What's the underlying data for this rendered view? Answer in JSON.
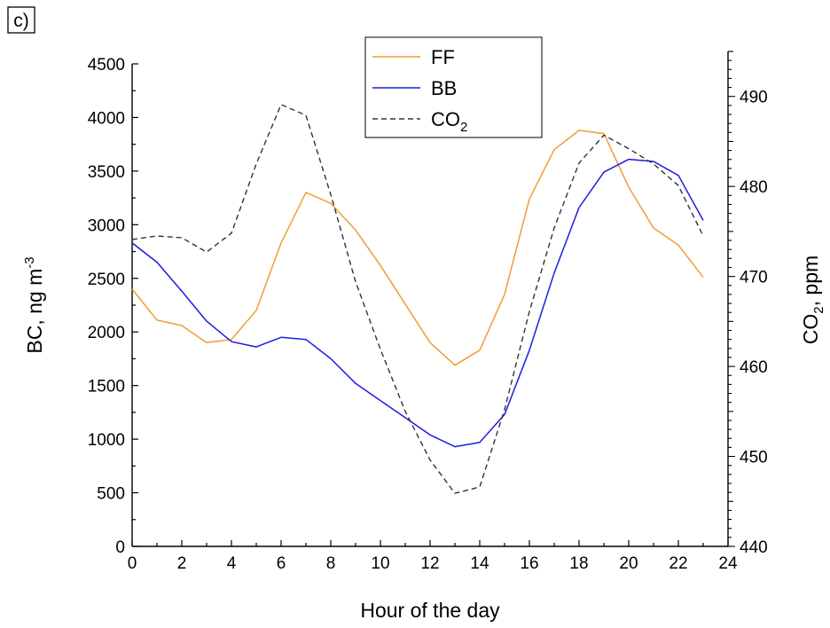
{
  "chart_data": {
    "type": "line",
    "panel_label": "c)",
    "x": [
      0,
      1,
      2,
      3,
      4,
      5,
      6,
      7,
      8,
      9,
      10,
      11,
      12,
      13,
      14,
      15,
      16,
      17,
      18,
      19,
      20,
      21,
      22,
      23
    ],
    "xlabel": "Hour of the day",
    "xlim": [
      0,
      24
    ],
    "x_ticks": [
      "0",
      "2",
      "4",
      "6",
      "8",
      "10",
      "12",
      "14",
      "16",
      "18",
      "20",
      "22",
      "24"
    ],
    "ylabel_left": {
      "main": "BC, ng m",
      "sup": "-3"
    },
    "ylim_left": [
      0,
      4500
    ],
    "y_ticks_left": [
      "0",
      "500",
      "1000",
      "1500",
      "2000",
      "2500",
      "3000",
      "3500",
      "4000",
      "4500"
    ],
    "ylabel_right": {
      "main": "CO",
      "sub": "2",
      "rest": ", ppm"
    },
    "ylim_right": [
      440,
      495
    ],
    "y_ticks_right": [
      "440",
      "450",
      "460",
      "470",
      "480",
      "490"
    ],
    "series": [
      {
        "name": "FF",
        "axis": "left",
        "color": "#F39C35",
        "style": "solid",
        "values": [
          2400,
          2110,
          2060,
          1900,
          1930,
          2200,
          2830,
          3300,
          3200,
          2950,
          2620,
          2260,
          1900,
          1690,
          1830,
          2350,
          3240,
          3700,
          3880,
          3850,
          3350,
          2970,
          2810,
          2510
        ]
      },
      {
        "name": "BB",
        "axis": "left",
        "color": "#1C1CE0",
        "style": "solid",
        "values": [
          2830,
          2650,
          2380,
          2100,
          1910,
          1860,
          1950,
          1930,
          1750,
          1520,
          1360,
          1200,
          1040,
          930,
          970,
          1230,
          1830,
          2550,
          3160,
          3490,
          3610,
          3590,
          3460,
          3040
        ]
      },
      {
        "name": "CO",
        "name_sub": "2",
        "axis": "right",
        "color": "#333333",
        "style": "dashed",
        "values": [
          474.1,
          474.5,
          474.3,
          472.7,
          474.8,
          482.5,
          489.1,
          487.9,
          479.1,
          469.4,
          461.9,
          455.0,
          449.6,
          445.9,
          446.6,
          455.2,
          466.1,
          475.4,
          482.6,
          485.7,
          484.2,
          482.5,
          480.1,
          474.5
        ]
      }
    ],
    "legend_position": "top-center",
    "grid": false
  }
}
